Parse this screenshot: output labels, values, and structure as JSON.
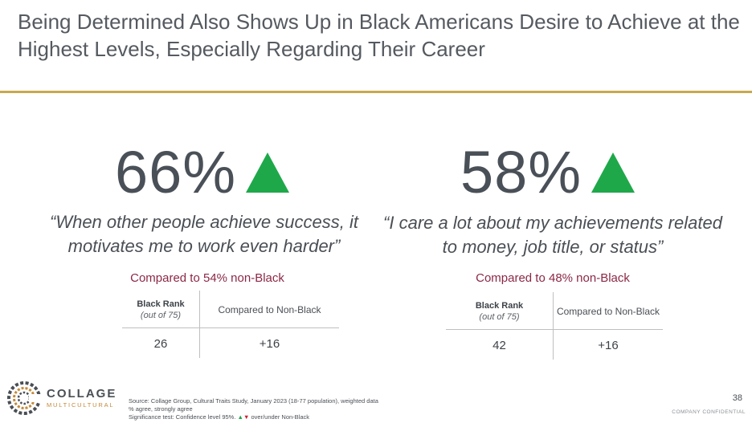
{
  "title": "Being Determined Also Shows Up in Black Americans Desire to Achieve at the Highest Levels, Especially Regarding Their Career",
  "colors": {
    "accent_rule": "#c9a84c",
    "up_arrow": "#1fa84a",
    "compared_text": "#8b2846"
  },
  "stats": [
    {
      "value": "66%",
      "indicator": "up-triangle-icon",
      "quote": "“When other people achieve success, it motivates me to work even harder”",
      "compared": "Compared to 54% non-Black",
      "table": {
        "col1_header": "Black Rank",
        "col1_sub": "(out of 75)",
        "col2_header": "Compared to Non-Black",
        "rank": "26",
        "diff": "+16"
      }
    },
    {
      "value": "58%",
      "indicator": "up-triangle-icon",
      "quote": "“I care a lot about my achievements related to money, job title, or status”",
      "compared": "Compared to 48% non-Black",
      "table": {
        "col1_header": "Black Rank",
        "col1_sub": "(out of 75)",
        "col2_header": "Compared to Non-Black",
        "rank": "42",
        "diff": "+16"
      }
    }
  ],
  "brand": {
    "name": "COLLAGE",
    "sub": "MULTICULTURAL"
  },
  "footer": {
    "source": "Source: Collage Group, Cultural Traits Study, January 2023 (18-77 population), weighted data",
    "measure": "% agree, strongly agree",
    "significance": "Significance test: Confidence level 95%.",
    "up_glyph": "▲",
    "down_glyph": "▼",
    "significance_tail": " over/under Non-Black",
    "page_number": "38",
    "confidential": "COMPANY CONFIDENTIAL"
  }
}
